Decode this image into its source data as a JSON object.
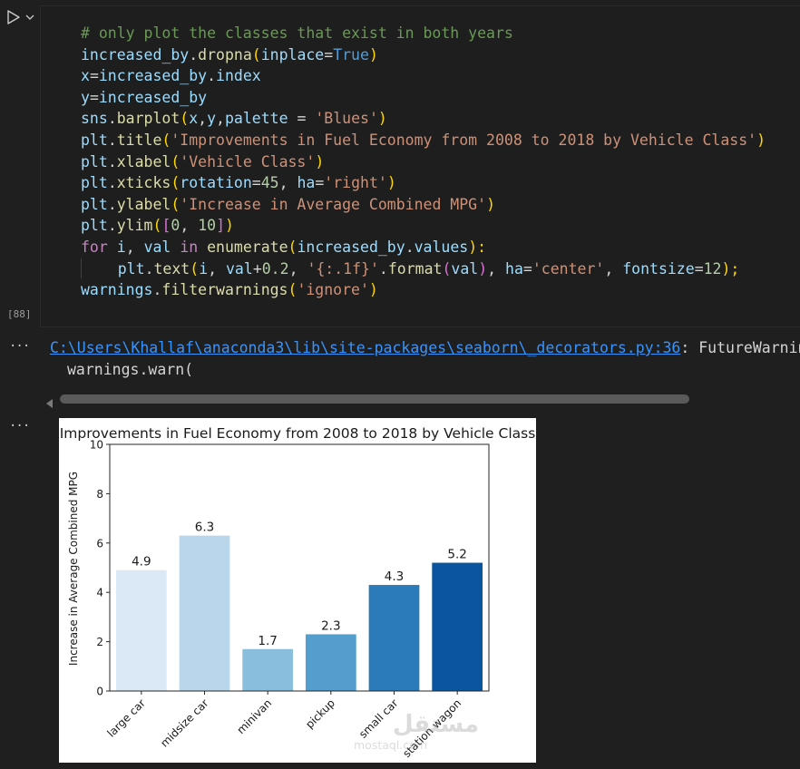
{
  "cell": {
    "execution_count": "[88]",
    "code_lines": [
      [
        {
          "t": "# only plot the classes that exist in both years",
          "c": "t-com"
        }
      ],
      [
        {
          "t": "increased_by",
          "c": "t-var"
        },
        {
          "t": ".",
          "c": "t-op"
        },
        {
          "t": "dropna",
          "c": "t-fn"
        },
        {
          "t": "(",
          "c": "t-par"
        },
        {
          "t": "inplace",
          "c": "t-var"
        },
        {
          "t": "=",
          "c": "t-op"
        },
        {
          "t": "True",
          "c": "t-bool"
        },
        {
          "t": ")",
          "c": "t-par"
        }
      ],
      [
        {
          "t": "x",
          "c": "t-var"
        },
        {
          "t": "=",
          "c": "t-op"
        },
        {
          "t": "increased_by",
          "c": "t-var"
        },
        {
          "t": ".",
          "c": "t-op"
        },
        {
          "t": "index",
          "c": "t-var"
        }
      ],
      [
        {
          "t": "y",
          "c": "t-var"
        },
        {
          "t": "=",
          "c": "t-op"
        },
        {
          "t": "increased_by",
          "c": "t-var"
        }
      ],
      [
        {
          "t": "sns",
          "c": "t-var"
        },
        {
          "t": ".",
          "c": "t-op"
        },
        {
          "t": "barplot",
          "c": "t-fn"
        },
        {
          "t": "(",
          "c": "t-par"
        },
        {
          "t": "x",
          "c": "t-var"
        },
        {
          "t": ",",
          "c": "t-op"
        },
        {
          "t": "y",
          "c": "t-var"
        },
        {
          "t": ",",
          "c": "t-op"
        },
        {
          "t": "palette",
          "c": "t-var"
        },
        {
          "t": " = ",
          "c": "t-op"
        },
        {
          "t": "'Blues'",
          "c": "t-str"
        },
        {
          "t": ")",
          "c": "t-par"
        }
      ],
      [
        {
          "t": "plt",
          "c": "t-var"
        },
        {
          "t": ".",
          "c": "t-op"
        },
        {
          "t": "title",
          "c": "t-fn"
        },
        {
          "t": "(",
          "c": "t-par"
        },
        {
          "t": "'Improvements in Fuel Economy from 2008 to 2018 by Vehicle Class'",
          "c": "t-str"
        },
        {
          "t": ")",
          "c": "t-par"
        }
      ],
      [
        {
          "t": "plt",
          "c": "t-var"
        },
        {
          "t": ".",
          "c": "t-op"
        },
        {
          "t": "xlabel",
          "c": "t-fn"
        },
        {
          "t": "(",
          "c": "t-par"
        },
        {
          "t": "'Vehicle Class'",
          "c": "t-str"
        },
        {
          "t": ")",
          "c": "t-par"
        }
      ],
      [
        {
          "t": "plt",
          "c": "t-var"
        },
        {
          "t": ".",
          "c": "t-op"
        },
        {
          "t": "xticks",
          "c": "t-fn"
        },
        {
          "t": "(",
          "c": "t-par"
        },
        {
          "t": "rotation",
          "c": "t-var"
        },
        {
          "t": "=",
          "c": "t-op"
        },
        {
          "t": "45",
          "c": "t-num"
        },
        {
          "t": ", ",
          "c": "t-op"
        },
        {
          "t": "ha",
          "c": "t-var"
        },
        {
          "t": "=",
          "c": "t-op"
        },
        {
          "t": "'right'",
          "c": "t-str"
        },
        {
          "t": ")",
          "c": "t-par"
        }
      ],
      [
        {
          "t": "plt",
          "c": "t-var"
        },
        {
          "t": ".",
          "c": "t-op"
        },
        {
          "t": "ylabel",
          "c": "t-fn"
        },
        {
          "t": "(",
          "c": "t-par"
        },
        {
          "t": "'Increase in Average Combined MPG'",
          "c": "t-str"
        },
        {
          "t": ")",
          "c": "t-par"
        }
      ],
      [
        {
          "t": "plt",
          "c": "t-var"
        },
        {
          "t": ".",
          "c": "t-op"
        },
        {
          "t": "ylim",
          "c": "t-fn"
        },
        {
          "t": "(",
          "c": "t-par"
        },
        {
          "t": "[",
          "c": "t-par2"
        },
        {
          "t": "0",
          "c": "t-num"
        },
        {
          "t": ", ",
          "c": "t-op"
        },
        {
          "t": "10",
          "c": "t-num"
        },
        {
          "t": "]",
          "c": "t-par2"
        },
        {
          "t": ")",
          "c": "t-par"
        }
      ],
      [
        {
          "t": "for",
          "c": "t-kw"
        },
        {
          "t": " ",
          "c": "t-op"
        },
        {
          "t": "i",
          "c": "t-var"
        },
        {
          "t": ", ",
          "c": "t-op"
        },
        {
          "t": "val",
          "c": "t-var"
        },
        {
          "t": " ",
          "c": "t-op"
        },
        {
          "t": "in",
          "c": "t-kw"
        },
        {
          "t": " ",
          "c": "t-op"
        },
        {
          "t": "enumerate",
          "c": "t-fn"
        },
        {
          "t": "(",
          "c": "t-par"
        },
        {
          "t": "increased_by",
          "c": "t-var"
        },
        {
          "t": ".",
          "c": "t-op"
        },
        {
          "t": "values",
          "c": "t-var"
        },
        {
          "t": "):",
          "c": "t-par"
        }
      ],
      [
        {
          "t": "    ",
          "c": "t-op",
          "guide": true
        },
        {
          "t": "plt",
          "c": "t-var"
        },
        {
          "t": ".",
          "c": "t-op"
        },
        {
          "t": "text",
          "c": "t-fn"
        },
        {
          "t": "(",
          "c": "t-par"
        },
        {
          "t": "i",
          "c": "t-var"
        },
        {
          "t": ", ",
          "c": "t-op"
        },
        {
          "t": "val",
          "c": "t-var"
        },
        {
          "t": "+",
          "c": "t-op"
        },
        {
          "t": "0.2",
          "c": "t-num"
        },
        {
          "t": ", ",
          "c": "t-op"
        },
        {
          "t": "'{:.1f}'",
          "c": "t-str"
        },
        {
          "t": ".",
          "c": "t-op"
        },
        {
          "t": "format",
          "c": "t-fn"
        },
        {
          "t": "(",
          "c": "t-par2"
        },
        {
          "t": "val",
          "c": "t-var"
        },
        {
          "t": ")",
          "c": "t-par2"
        },
        {
          "t": ", ",
          "c": "t-op"
        },
        {
          "t": "ha",
          "c": "t-var"
        },
        {
          "t": "=",
          "c": "t-op"
        },
        {
          "t": "'center'",
          "c": "t-str"
        },
        {
          "t": ", ",
          "c": "t-op"
        },
        {
          "t": "fontsize",
          "c": "t-var"
        },
        {
          "t": "=",
          "c": "t-op"
        },
        {
          "t": "12",
          "c": "t-num"
        },
        {
          "t": ");",
          "c": "t-par"
        }
      ],
      [
        {
          "t": "warnings",
          "c": "t-var"
        },
        {
          "t": ".",
          "c": "t-op"
        },
        {
          "t": "filterwarnings",
          "c": "t-fn"
        },
        {
          "t": "(",
          "c": "t-par"
        },
        {
          "t": "'ignore'",
          "c": "t-str"
        },
        {
          "t": ")",
          "c": "t-par"
        }
      ]
    ]
  },
  "output": {
    "warning_link": "C:\\Users\\Khallaf\\anaconda3\\lib\\site-packages\\seaborn\\_decorators.py:36",
    "warning_rest": ": FutureWarning:",
    "warning_line2": "warnings.warn(",
    "ellipsis": "···"
  },
  "icons": {
    "run": "play-icon",
    "run_menu": "chevron-down-icon",
    "scroll_left": "arrow-left-icon"
  },
  "chart_data": {
    "type": "bar",
    "title": "Improvements in Fuel Economy from 2008 to 2018 by Vehicle Class",
    "xlabel": "",
    "ylabel": "Increase in Average Combined MPG",
    "categories": [
      "large car",
      "midsize car",
      "minivan",
      "pickup",
      "small car",
      "station wagon"
    ],
    "values": [
      4.9,
      6.3,
      1.7,
      2.3,
      4.3,
      5.2
    ],
    "labels": [
      "4.9",
      "6.3",
      "1.7",
      "2.3",
      "4.3",
      "5.2"
    ],
    "colors": [
      "#dbe9f6",
      "#bad6eb",
      "#89bedc",
      "#539ecd",
      "#2b7bba",
      "#0b559f"
    ],
    "ylim": [
      0,
      10
    ],
    "yticks": [
      0,
      2,
      4,
      6,
      8,
      10
    ],
    "grid": false
  },
  "watermark": {
    "text1": "مستقل",
    "text2": "mostaql.com"
  }
}
